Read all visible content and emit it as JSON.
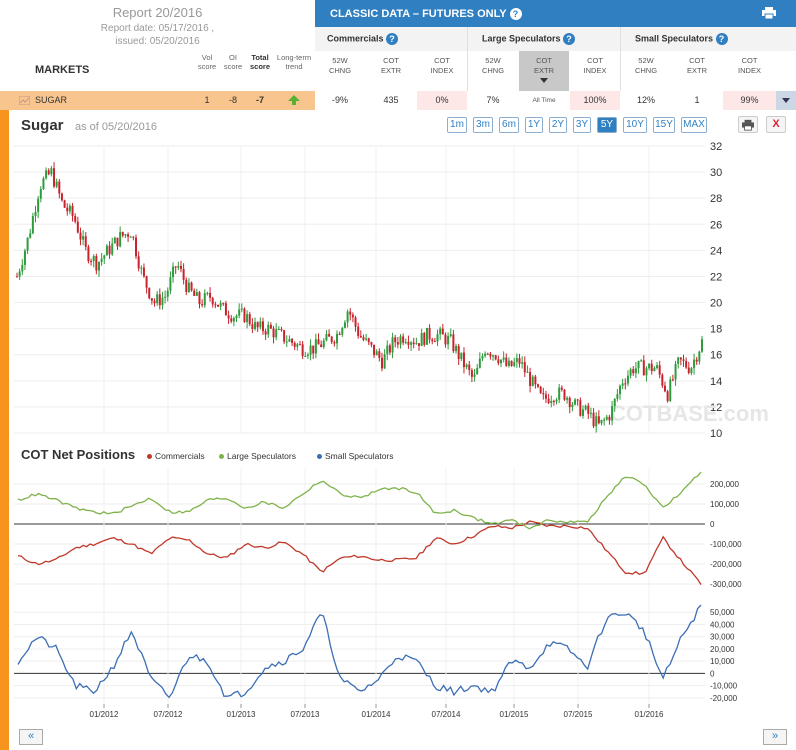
{
  "report": {
    "title": "Report 20/2016",
    "date_line1": "Report date: 05/17/2016 ,",
    "date_line2": "issued: 05/20/2016"
  },
  "header": {
    "markets_label": "MARKETS",
    "score_headers": [
      {
        "l1": "Vol",
        "l2": "score",
        "bold": false
      },
      {
        "l1": "OI",
        "l2": "score",
        "bold": false
      },
      {
        "l1": "Total",
        "l2": "score",
        "bold": true
      },
      {
        "l1": "Long-term",
        "l2": "trend",
        "bold": false
      }
    ],
    "classic_title": "CLASSIC DATA – FUTURES ONLY",
    "help": "?",
    "groups": [
      "Commercials",
      "Large Speculators",
      "Small Speculators"
    ],
    "columns": [
      {
        "l1": "52W",
        "l2": "CHNG"
      },
      {
        "l1": "COT",
        "l2": "EXTR"
      },
      {
        "l1": "COT",
        "l2": "INDEX"
      },
      {
        "l1": "52W",
        "l2": "CHNG"
      },
      {
        "l1": "COT",
        "l2": "EXTR"
      },
      {
        "l1": "COT",
        "l2": "INDEX"
      },
      {
        "l1": "52W",
        "l2": "CHNG"
      },
      {
        "l1": "COT",
        "l2": "EXTR"
      },
      {
        "l1": "COT",
        "l2": "INDEX"
      }
    ]
  },
  "row": {
    "market": "SUGAR",
    "vol_score": "1",
    "oi_score": "-8",
    "total_score": "-7",
    "trend": "up-arrow-icon",
    "values": [
      "-9%",
      "435",
      "0%",
      "7%",
      "All Time",
      "100%",
      "12%",
      "1",
      "99%"
    ]
  },
  "chart": {
    "title": "Sugar",
    "as_of": "as of 05/20/2016",
    "zoom_buttons": [
      "1m",
      "3m",
      "6m",
      "1Y",
      "2Y",
      "3Y",
      "5Y",
      "10Y",
      "15Y",
      "MAX"
    ],
    "active_zoom": "5Y",
    "close_label": "X",
    "watermark": "COTBASE.com",
    "cot_title": "COT Net Positions",
    "colors": {
      "commercials": "#c0392b",
      "large": "#7fb24a",
      "small": "#3c6eb4",
      "up": "#2e9b3c",
      "down": "#c8232c"
    },
    "nav_prev": "«",
    "nav_next": "»"
  },
  "chart_data": [
    {
      "type": "candlestick",
      "title": "Sugar",
      "y_ticks": [
        10,
        12,
        14,
        16,
        18,
        20,
        22,
        24,
        26,
        28,
        30,
        32
      ],
      "ylim": [
        10,
        32
      ],
      "x_ticks": [
        "01/2012",
        "07/2012",
        "01/2013",
        "07/2013",
        "01/2014",
        "07/2014",
        "01/2015",
        "07/2015",
        "01/2016"
      ],
      "close_path": [
        [
          "05/2011",
          22.0
        ],
        [
          "06/2011",
          25.0
        ],
        [
          "07/2011",
          29.0
        ],
        [
          "08/2011",
          30.0
        ],
        [
          "09/2011",
          27.5
        ],
        [
          "10/2011",
          26.5
        ],
        [
          "11/2011",
          24.0
        ],
        [
          "12/2011",
          23.0
        ],
        [
          "01/2012",
          24.0
        ],
        [
          "02/2012",
          25.0
        ],
        [
          "03/2012",
          25.5
        ],
        [
          "04/2012",
          22.0
        ],
        [
          "05/2012",
          20.0
        ],
        [
          "06/2012",
          20.5
        ],
        [
          "07/2012",
          23.0
        ],
        [
          "08/2012",
          21.0
        ],
        [
          "09/2012",
          20.0
        ],
        [
          "10/2012",
          20.5
        ],
        [
          "11/2012",
          19.5
        ],
        [
          "12/2012",
          19.0
        ],
        [
          "01/2013",
          19.0
        ],
        [
          "02/2013",
          18.0
        ],
        [
          "03/2013",
          18.0
        ],
        [
          "04/2013",
          17.5
        ],
        [
          "05/2013",
          17.0
        ],
        [
          "06/2013",
          16.5
        ],
        [
          "07/2013",
          16.5
        ],
        [
          "08/2013",
          17.0
        ],
        [
          "09/2013",
          17.5
        ],
        [
          "10/2013",
          19.5
        ],
        [
          "11/2013",
          17.5
        ],
        [
          "12/2013",
          16.5
        ],
        [
          "01/2014",
          15.5
        ],
        [
          "02/2014",
          17.0
        ],
        [
          "03/2014",
          17.5
        ],
        [
          "04/2014",
          17.0
        ],
        [
          "05/2014",
          17.5
        ],
        [
          "06/2014",
          17.5
        ],
        [
          "07/2014",
          17.0
        ],
        [
          "08/2014",
          15.5
        ],
        [
          "09/2014",
          14.0
        ],
        [
          "10/2014",
          16.5
        ],
        [
          "11/2014",
          16.0
        ],
        [
          "12/2014",
          15.0
        ],
        [
          "01/2015",
          15.5
        ],
        [
          "02/2015",
          14.0
        ],
        [
          "03/2015",
          12.5
        ],
        [
          "04/2015",
          13.0
        ],
        [
          "05/2015",
          13.0
        ],
        [
          "06/2015",
          12.0
        ],
        [
          "07/2015",
          11.5
        ],
        [
          "08/2015",
          10.5
        ],
        [
          "09/2015",
          11.5
        ],
        [
          "10/2015",
          14.0
        ],
        [
          "11/2015",
          15.0
        ],
        [
          "12/2015",
          15.0
        ],
        [
          "01/2016",
          15.0
        ],
        [
          "02/2016",
          13.0
        ],
        [
          "03/2016",
          15.5
        ],
        [
          "04/2016",
          15.0
        ],
        [
          "05/2016",
          17.0
        ]
      ]
    },
    {
      "type": "line",
      "title": "COT Net Positions",
      "y_ticks": [
        -300000,
        -200000,
        -100000,
        0,
        100000,
        200000
      ],
      "y_tick_labels": [
        "-300,000",
        "-200,000",
        "-100,000",
        "0",
        "100,000",
        "200,000"
      ],
      "ylim": [
        -320000,
        280000
      ],
      "series": [
        {
          "name": "Commercials",
          "values": [
            -160000,
            -200000,
            -180000,
            -120000,
            -100000,
            -70000,
            -100000,
            -150000,
            -70000,
            -80000,
            -150000,
            -170000,
            -100000,
            -120000,
            -90000,
            -150000,
            -240000,
            -170000,
            -160000,
            -180000,
            -180000,
            -170000,
            -70000,
            -100000,
            -60000,
            -10000,
            -20000,
            10000,
            -10000,
            -10000,
            -20000,
            -130000,
            -240000,
            -250000,
            -70000,
            -190000,
            -300000
          ]
        },
        {
          "name": "Large Speculators",
          "values": [
            120000,
            150000,
            120000,
            80000,
            60000,
            50000,
            90000,
            130000,
            60000,
            60000,
            120000,
            130000,
            80000,
            110000,
            80000,
            150000,
            220000,
            150000,
            130000,
            170000,
            180000,
            160000,
            50000,
            70000,
            30000,
            0,
            20000,
            -20000,
            20000,
            10000,
            10000,
            130000,
            240000,
            200000,
            80000,
            160000,
            260000
          ]
        },
        {
          "name": "Small Speculators",
          "values": [
            10000,
            30000,
            20000,
            -10000,
            -15000,
            5000,
            35000,
            -5000,
            -20000,
            15000,
            10000,
            -20000,
            -15000,
            5000,
            10000,
            20000,
            50000,
            -5000,
            -15000,
            -5000,
            15000,
            10000,
            -10000,
            -15000,
            -10000,
            -15000,
            10000,
            5000,
            25000,
            20000,
            5000,
            45000,
            50000,
            35000,
            -5000,
            30000,
            55000
          ]
        }
      ]
    }
  ]
}
